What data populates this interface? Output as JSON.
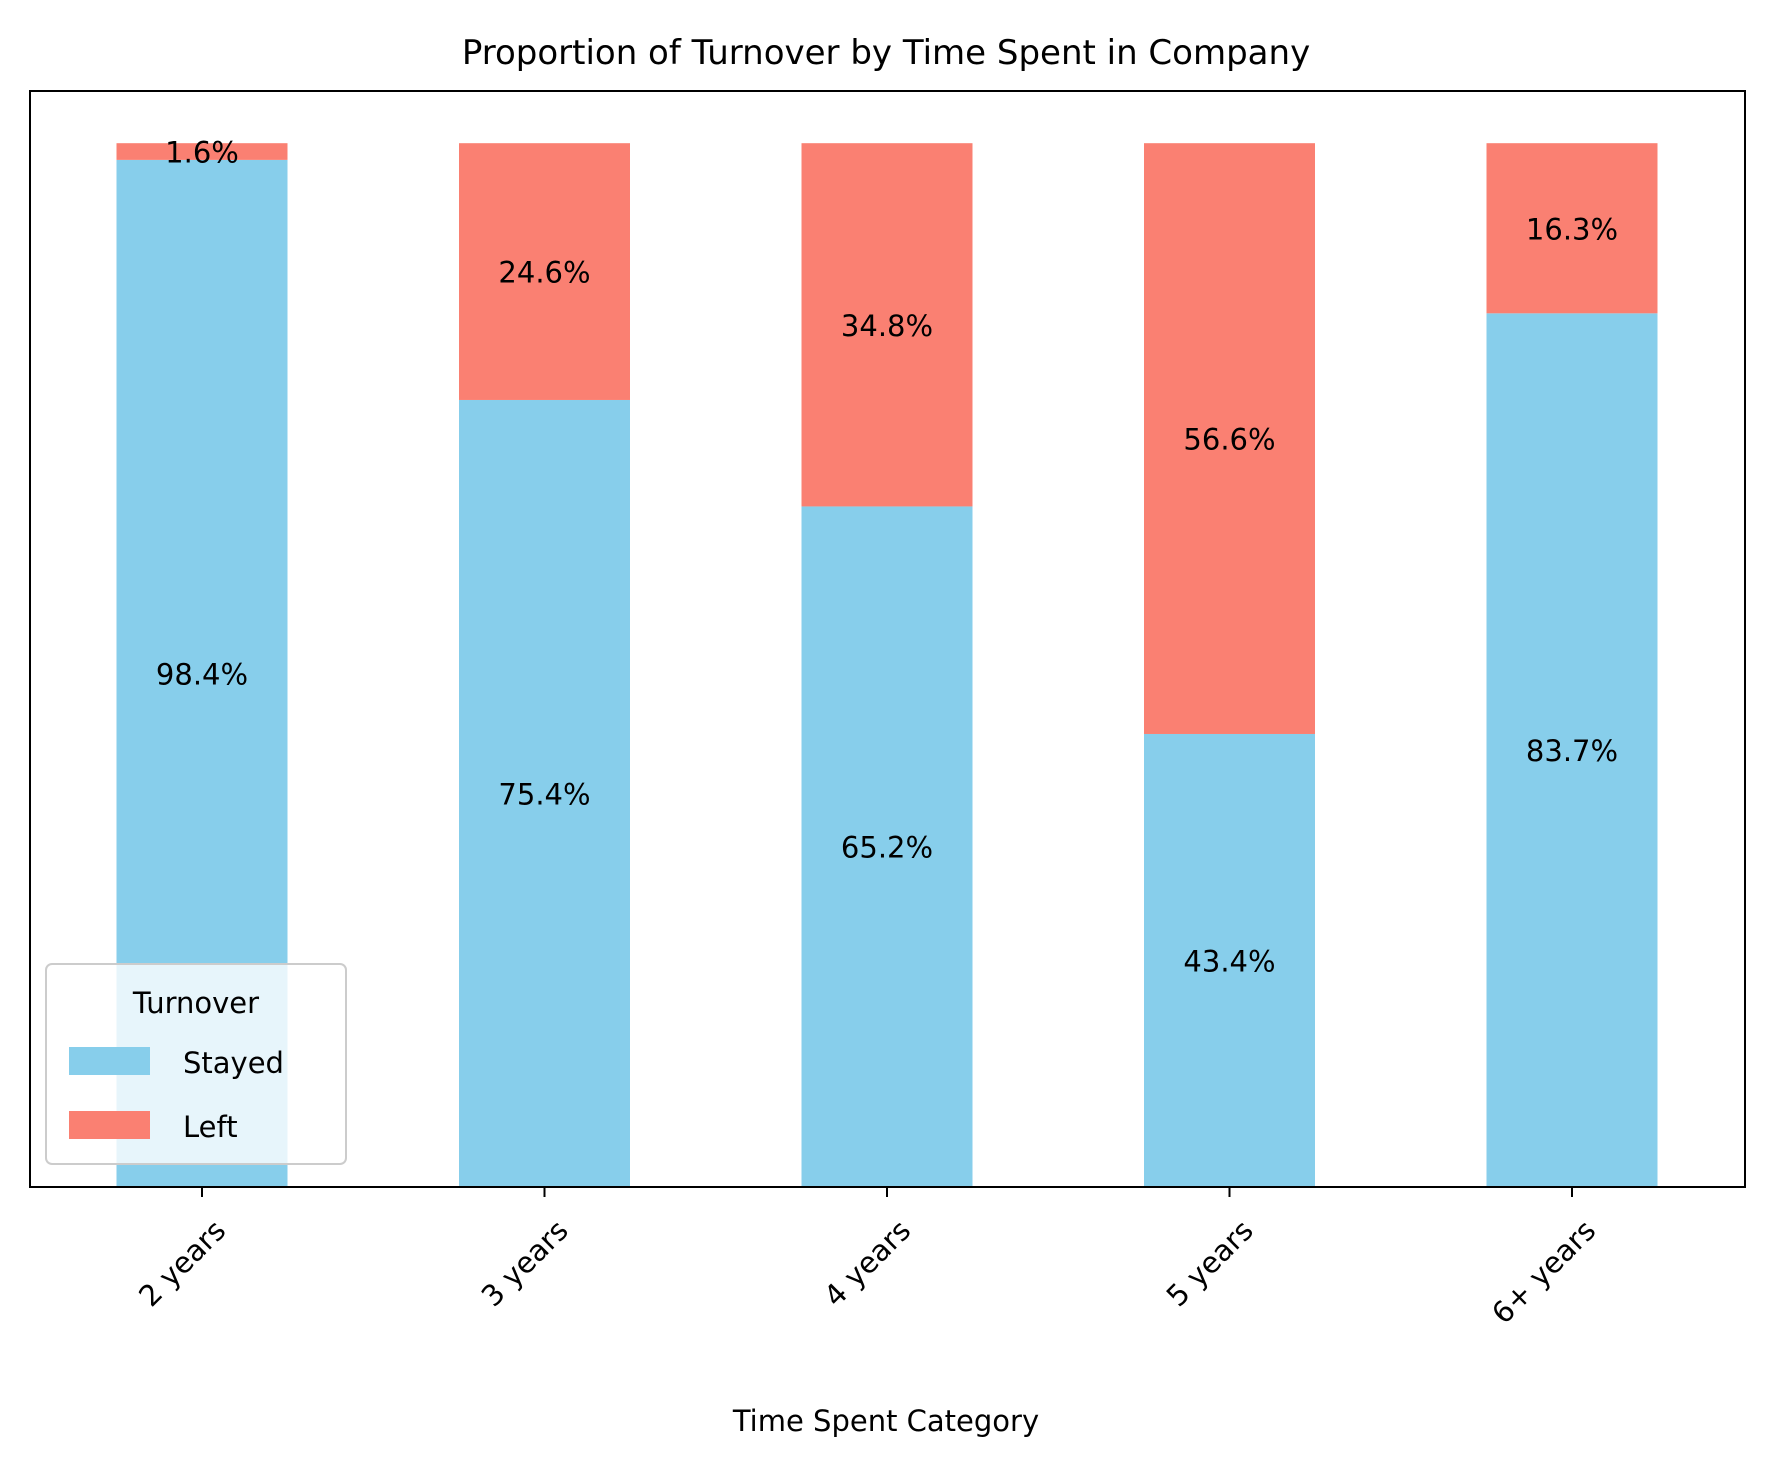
{
  "chart_data": {
    "type": "bar",
    "stacked": true,
    "title": "Proportion of Turnover by Time Spent in Company",
    "xlabel": "Time Spent Category",
    "ylabel": "",
    "ylim": [
      0,
      1.05
    ],
    "y_ticks_visible": false,
    "grid": false,
    "categories": [
      "2 years",
      "3 years",
      "4 years",
      "5 years",
      "6+ years"
    ],
    "series": [
      {
        "name": "Stayed",
        "color": "#87CEEB",
        "values": [
          0.984,
          0.754,
          0.652,
          0.434,
          0.837
        ],
        "labels": [
          "98.4%",
          "75.4%",
          "65.2%",
          "43.4%",
          "83.7%"
        ]
      },
      {
        "name": "Left",
        "color": "#FA8072",
        "values": [
          0.016,
          0.246,
          0.348,
          0.566,
          0.163
        ],
        "labels": [
          "1.6%",
          "24.6%",
          "34.8%",
          "56.6%",
          "16.3%"
        ]
      }
    ],
    "legend": {
      "title": "Turnover",
      "placement": "lower-left"
    }
  }
}
